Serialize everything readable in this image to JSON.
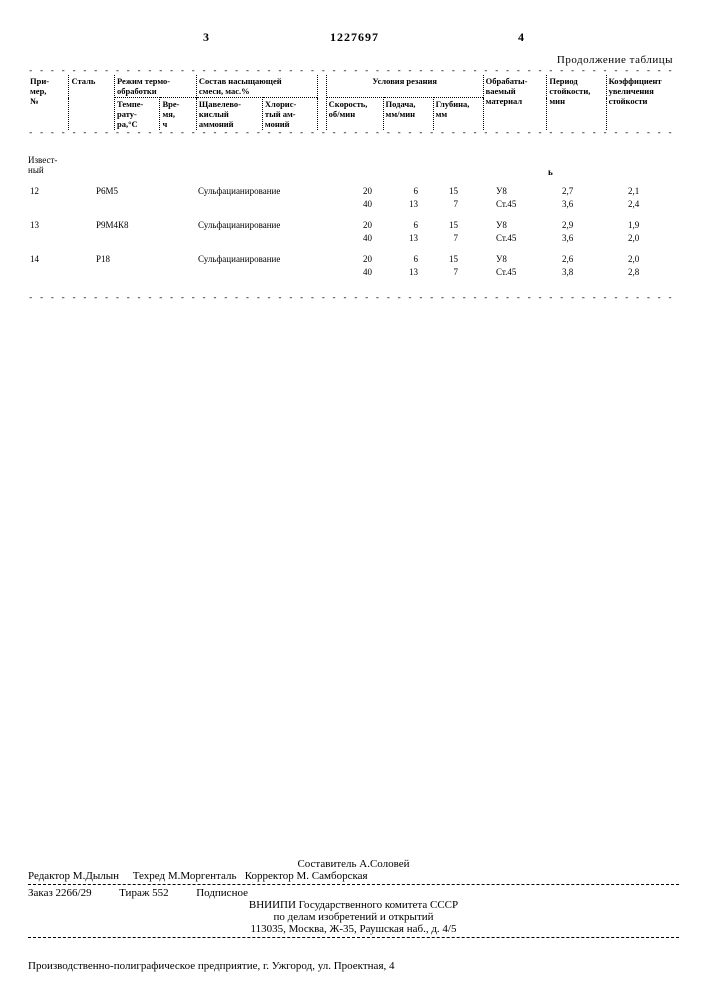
{
  "page": {
    "col_left_num": "3",
    "patent_number": "1227697",
    "col_right_num": "4",
    "continuation_label": "Продолжение таблицы"
  },
  "header": {
    "row1": {
      "c1": "При-\nмер,\n№",
      "c2": "Сталь",
      "c3": "Режим термо-\nобработки",
      "c4": "Состав насыщающей\nсмеси, мас.%",
      "c5": "",
      "c6": "Условия резания",
      "c7": "Обрабаты-\nваемый\nматериал",
      "c8": "Период\nстойкости,\nмин",
      "c9": "Коэффициент\nувеличения\nстойкости"
    },
    "row2": {
      "c3a": "Темпе-\nрату-\nра,°С",
      "c3b": "Вре-\nмя,\nч",
      "c4a": "Щавелево-\nкислый\nаммоний",
      "c4b": "Хлорис-\nтый ам-\nмоний",
      "c6a": "Скорость,\nоб/мин",
      "c6b": "Подача,\nмм/мин",
      "c6c": "Глубина,\nмм"
    }
  },
  "section_label": "Извест-\nный",
  "rows": [
    {
      "n": "12",
      "steel": "Р6М5",
      "process": "Сульфацианирование",
      "lines": [
        {
          "speed": "20",
          "feed": "6",
          "depth": "15",
          "mat": "У8",
          "period": "2,7",
          "coef": "2,1"
        },
        {
          "speed": "40",
          "feed": "13",
          "depth": "7",
          "mat": "Ст.45",
          "period": "3,6",
          "coef": "2,4"
        }
      ]
    },
    {
      "n": "13",
      "steel": "Р9М4К8",
      "process": "Сульфацианирование",
      "lines": [
        {
          "speed": "20",
          "feed": "6",
          "depth": "15",
          "mat": "У8",
          "period": "2,9",
          "coef": "1,9"
        },
        {
          "speed": "40",
          "feed": "13",
          "depth": "7",
          "mat": "Ст.45",
          "period": "3,6",
          "coef": "2,0"
        }
      ]
    },
    {
      "n": "14",
      "steel": "Р18",
      "process": "Сульфацианирование",
      "lines": [
        {
          "speed": "20",
          "feed": "6",
          "depth": "15",
          "mat": "У8",
          "period": "2,6",
          "coef": "2,0"
        },
        {
          "speed": "40",
          "feed": "13",
          "depth": "7",
          "mat": "Ст.45",
          "period": "3,8",
          "coef": "2,8"
        }
      ]
    }
  ],
  "footer": {
    "compiler": "Составитель А.Соловей",
    "editor": "Редактор М.Дылын",
    "tech": "Техред М.Моргенталь",
    "corrector": "Корректор М. Самборская",
    "order": "Заказ 2266/29",
    "tiraz": "Тираж 552",
    "podpis": "Подписное",
    "org1": "ВНИИПИ Государственного комитета СССР",
    "org2": "по делам изобретений и открытий",
    "addr": "113035, Москва, Ж-35, Раушская наб., д. 4/5",
    "press": "Производственно-полиграфическое предприятие, г. Ужгород, ул. Проектная, 4"
  }
}
